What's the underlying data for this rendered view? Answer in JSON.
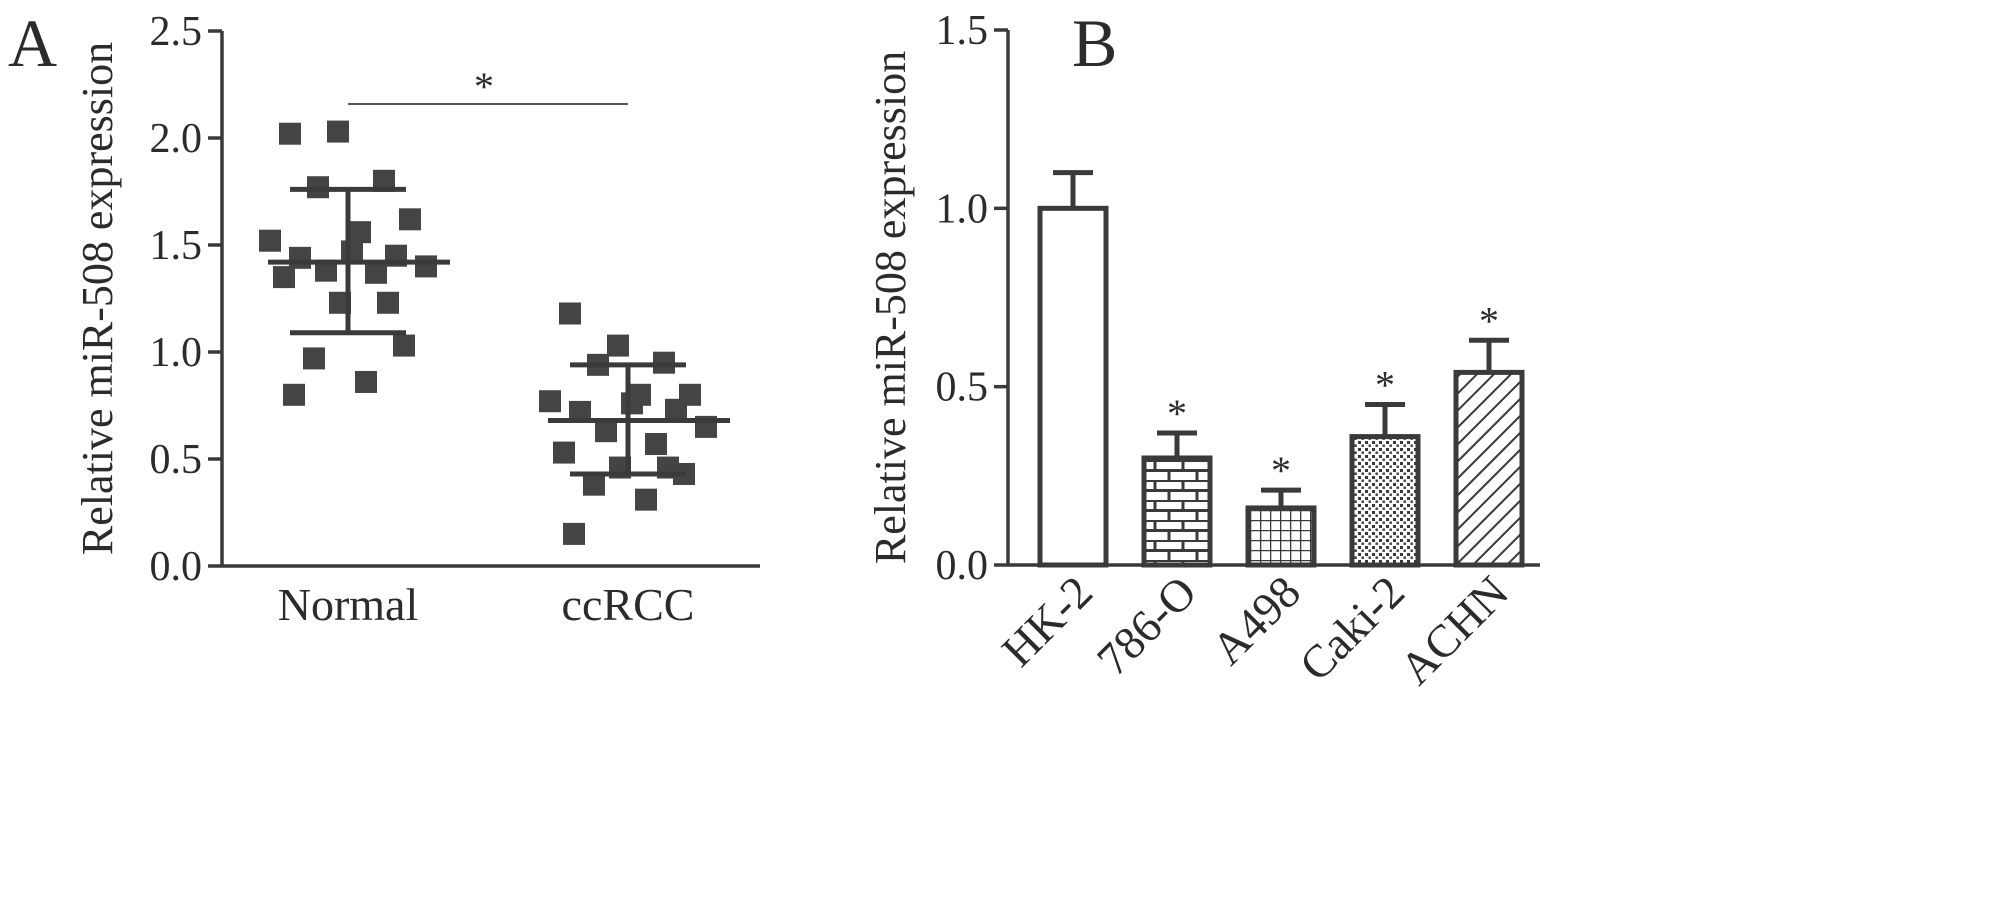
{
  "chart_data": [
    {
      "panel": "A",
      "type": "scatter",
      "ylabel": "Relative miR-508 expression",
      "ylim": [
        0,
        2.5
      ],
      "yticks": [
        "0.0",
        "0.5",
        "1.0",
        "1.5",
        "2.0",
        "2.5"
      ],
      "categories": [
        "Normal",
        "ccRCC"
      ],
      "significance": {
        "between": [
          "Normal",
          "ccRCC"
        ],
        "symbol": "*"
      },
      "groups": [
        {
          "category": "Normal",
          "mean": 1.42,
          "sd_upper": 1.76,
          "sd_lower": 1.09,
          "points": [
            2.02,
            2.03,
            1.8,
            1.77,
            1.62,
            1.56,
            1.52,
            1.47,
            1.45,
            1.44,
            1.4,
            1.38,
            1.37,
            1.35,
            1.23,
            1.23,
            1.03,
            0.97,
            0.86,
            0.8
          ]
        },
        {
          "category": "ccRCC",
          "mean": 0.68,
          "sd_upper": 0.94,
          "sd_lower": 0.43,
          "points": [
            1.18,
            1.03,
            0.95,
            0.94,
            0.8,
            0.8,
            0.77,
            0.76,
            0.73,
            0.72,
            0.65,
            0.63,
            0.57,
            0.53,
            0.46,
            0.46,
            0.43,
            0.38,
            0.31,
            0.15
          ]
        }
      ]
    },
    {
      "panel": "B",
      "type": "bar",
      "ylabel": "Relative miR-508 expression",
      "ylim": [
        0,
        1.5
      ],
      "yticks": [
        "0.0",
        "0.5",
        "1.0",
        "1.5"
      ],
      "categories": [
        "HK-2",
        "786-O",
        "A498",
        "Caki-2",
        "ACHN"
      ],
      "values": [
        1.0,
        0.3,
        0.16,
        0.36,
        0.54
      ],
      "errors": [
        0.1,
        0.07,
        0.05,
        0.09,
        0.09
      ],
      "significant": [
        "",
        "*",
        "*",
        "*",
        "*"
      ],
      "patterns": [
        "none",
        "brick",
        "grid",
        "dots",
        "diagonal"
      ]
    }
  ]
}
